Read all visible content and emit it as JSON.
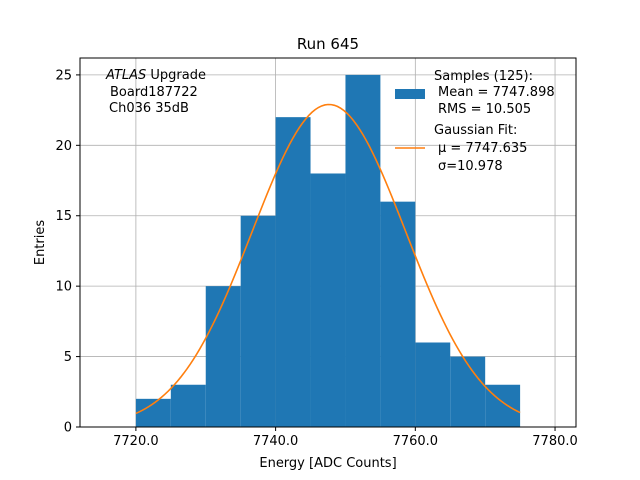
{
  "chart_data": {
    "type": "bar",
    "title": "Run 645",
    "xlabel": "Energy [ADC Counts]",
    "ylabel": "Entries",
    "xlim": [
      7712.0,
      7783.0
    ],
    "ylim": [
      0,
      26.2
    ],
    "xticks": [
      7720.0,
      7740.0,
      7760.0,
      7780.0
    ],
    "xtick_labels": [
      "7720.0",
      "7740.0",
      "7760.0",
      "7780.0"
    ],
    "yticks": [
      0,
      5,
      10,
      15,
      20,
      25
    ],
    "ytick_labels": [
      "0",
      "5",
      "10",
      "15",
      "20",
      "25"
    ],
    "grid": true,
    "bar_color": "#1f77b4",
    "fit_color": "#ff7f0e",
    "histogram": {
      "bin_edges": [
        7720,
        7725,
        7730,
        7735,
        7740,
        7745,
        7750,
        7755,
        7760,
        7765,
        7770,
        7775
      ],
      "counts": [
        2,
        3,
        10,
        15,
        22,
        18,
        25,
        16,
        6,
        5,
        3
      ]
    },
    "gaussian_fit": {
      "amplitude": 22.9,
      "mu": 7747.635,
      "sigma": 10.978,
      "x_range": [
        7720.0,
        7775.0
      ]
    },
    "annotation": {
      "line1_italic": "ATLAS",
      "line1_rest": " Upgrade",
      "line2": "Board187722",
      "line3": "Ch036 35dB"
    },
    "legend": {
      "placement": "top-right",
      "samples_title": "Samples (125):",
      "samples_mean": "Mean = 7747.898",
      "samples_rms": "RMS = 10.505",
      "fit_title": "Gaussian Fit:",
      "fit_mu": "μ = 7747.635",
      "fit_sigma": "σ=10.978"
    }
  }
}
